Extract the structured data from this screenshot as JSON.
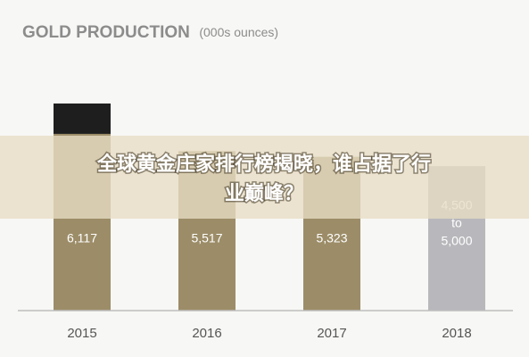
{
  "chart_data": {
    "type": "bar",
    "title": "GOLD PRODUCTION",
    "subtitle": "(000s ounces)",
    "categories": [
      "2015",
      "2016",
      "2017",
      "2018"
    ],
    "series": [
      {
        "color": "#9c8d68",
        "values": [
          6117,
          5517,
          5323,
          null
        ],
        "value_labels": [
          "6,117",
          "5,517",
          "5,323",
          null
        ]
      },
      {
        "color": "#1e1e1e",
        "values": [
          1050,
          null,
          null,
          null
        ]
      }
    ],
    "forecast": {
      "low": 4500,
      "high": 5000,
      "low_label": "4,500",
      "joiner": "to",
      "high_label": "5,000",
      "color": "#b8b8bc"
    },
    "ylim": [
      0,
      8000
    ]
  },
  "banner": {
    "line1": "全球黄金庄家排行榜揭晓，谁占据了行",
    "line2": "业巅峰？"
  }
}
